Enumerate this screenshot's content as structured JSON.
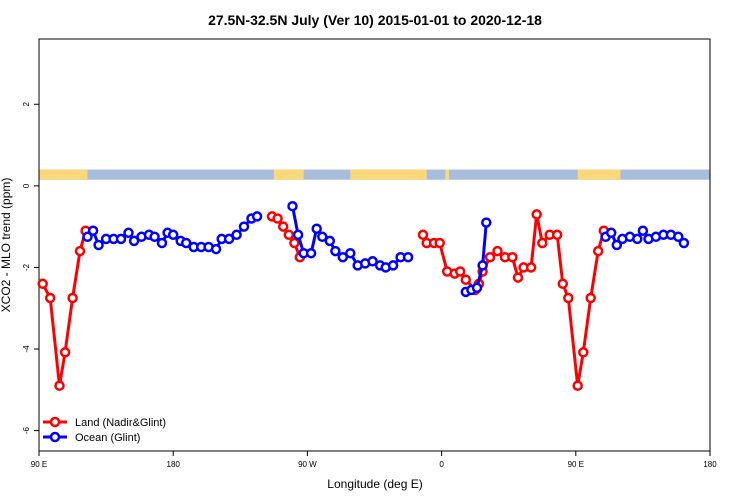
{
  "chart_data": {
    "type": "line",
    "title": "27.5N-32.5N July (Ver 10)   2015-01-01 to 2020-12-18",
    "xlabel": "Longitude (deg E)",
    "ylabel": "XCO2 - MLO trend (ppm)",
    "xlim": [
      -90,
      270
    ],
    "ylim": [
      -6.5,
      3.6
    ],
    "x_ticks": [
      {
        "value": -90,
        "label": "90 E"
      },
      {
        "value": -18,
        "label": "180"
      },
      {
        "value": 54,
        "label": "90 W"
      },
      {
        "value": 126,
        "label": "0"
      },
      {
        "value": 198,
        "label": "90 E"
      },
      {
        "value": 270,
        "label": "180"
      }
    ],
    "y_ticks": [
      {
        "value": -6,
        "label": "-6"
      },
      {
        "value": -4,
        "label": "-4"
      },
      {
        "value": -2,
        "label": "-2"
      },
      {
        "value": 0,
        "label": "0"
      },
      {
        "value": 2,
        "label": "2"
      }
    ],
    "land_ocean_strip": {
      "y_range": [
        0.15,
        0.4
      ],
      "land_color": "#f8d878",
      "ocean_color": "#a8bcdc",
      "land_segments": [
        [
          -90,
          -64
        ],
        [
          36,
          52
        ],
        [
          77,
          118
        ],
        [
          128,
          130
        ],
        [
          199,
          222
        ]
      ]
    },
    "legend": {
      "position": "bottom-left",
      "entries": [
        {
          "label": "Land (Nadir&Glint)",
          "color": "#ff0000"
        },
        {
          "label": "Ocean (Glint)",
          "color": "#0000ff"
        }
      ]
    },
    "series": [
      {
        "name": "Land (Nadir&Glint)",
        "color": "#ff0000",
        "segments": [
          [
            [
              -88,
              -2.4
            ],
            [
              -84,
              -2.75
            ],
            [
              -79,
              -4.9
            ],
            [
              -76,
              -4.08
            ],
            [
              -72,
              -2.75
            ],
            [
              -68,
              -1.6
            ],
            [
              -65,
              -1.1
            ]
          ],
          [
            [
              35,
              -0.75
            ],
            [
              38,
              -0.8
            ],
            [
              41,
              -1.0
            ],
            [
              44,
              -1.2
            ],
            [
              47,
              -1.4
            ],
            [
              50,
              -1.75
            ]
          ],
          [
            [
              116,
              -1.2
            ],
            [
              118,
              -1.4
            ],
            [
              122,
              -1.4
            ],
            [
              125,
              -1.4
            ],
            [
              129,
              -2.1
            ],
            [
              133,
              -2.15
            ],
            [
              136,
              -2.1
            ],
            [
              139,
              -2.3
            ],
            [
              144,
              -2.55
            ],
            [
              146,
              -2.4
            ],
            [
              148,
              -2.1
            ],
            [
              152,
              -1.75
            ],
            [
              156,
              -1.6
            ],
            [
              160,
              -1.75
            ],
            [
              164,
              -1.75
            ],
            [
              167,
              -2.25
            ],
            [
              170,
              -2.0
            ],
            [
              174,
              -2.0
            ],
            [
              177,
              -0.7
            ],
            [
              180,
              -1.4
            ],
            [
              184,
              -1.2
            ],
            [
              188,
              -1.2
            ],
            [
              191,
              -2.4
            ],
            [
              194,
              -2.75
            ],
            [
              199,
              -4.9
            ],
            [
              202,
              -4.08
            ],
            [
              206,
              -2.75
            ],
            [
              210,
              -1.6
            ],
            [
              213,
              -1.1
            ]
          ]
        ]
      },
      {
        "name": "Ocean (Glint)",
        "color": "#0000ff",
        "segments": [
          [
            [
              -64,
              -1.25
            ],
            [
              -61,
              -1.1
            ],
            [
              -58,
              -1.45
            ],
            [
              -54,
              -1.3
            ],
            [
              -50,
              -1.3
            ],
            [
              -46,
              -1.3
            ],
            [
              -42,
              -1.15
            ],
            [
              -39,
              -1.35
            ],
            [
              -35,
              -1.25
            ],
            [
              -31,
              -1.2
            ],
            [
              -28,
              -1.25
            ],
            [
              -24,
              -1.4
            ],
            [
              -21,
              -1.15
            ],
            [
              -18,
              -1.2
            ],
            [
              -14,
              -1.35
            ],
            [
              -11,
              -1.4
            ],
            [
              -7,
              -1.5
            ],
            [
              -3,
              -1.5
            ],
            [
              1,
              -1.5
            ],
            [
              5,
              -1.55
            ],
            [
              8,
              -1.3
            ],
            [
              12,
              -1.3
            ],
            [
              16,
              -1.2
            ],
            [
              20,
              -1.0
            ],
            [
              24,
              -0.8
            ],
            [
              27,
              -0.75
            ]
          ],
          [
            [
              46,
              -0.5
            ],
            [
              49,
              -1.2
            ],
            [
              52,
              -1.65
            ],
            [
              56,
              -1.65
            ],
            [
              59,
              -1.05
            ],
            [
              62,
              -1.25
            ],
            [
              66,
              -1.35
            ],
            [
              69,
              -1.6
            ],
            [
              73,
              -1.75
            ],
            [
              77,
              -1.65
            ],
            [
              81,
              -1.95
            ],
            [
              85,
              -1.9
            ],
            [
              89,
              -1.85
            ],
            [
              93,
              -1.95
            ],
            [
              96,
              -2.0
            ],
            [
              100,
              -1.95
            ],
            [
              104,
              -1.75
            ],
            [
              108,
              -1.75
            ]
          ],
          [
            [
              139,
              -2.6
            ],
            [
              142,
              -2.55
            ],
            [
              145,
              -2.5
            ],
            [
              148,
              -1.95
            ],
            [
              150,
              -0.9
            ]
          ],
          [
            [
              214,
              -1.25
            ],
            [
              217,
              -1.15
            ],
            [
              220,
              -1.45
            ],
            [
              223,
              -1.3
            ],
            [
              227,
              -1.25
            ],
            [
              231,
              -1.3
            ],
            [
              234,
              -1.1
            ],
            [
              237,
              -1.3
            ],
            [
              241,
              -1.25
            ],
            [
              245,
              -1.2
            ],
            [
              249,
              -1.2
            ],
            [
              253,
              -1.25
            ],
            [
              256,
              -1.4
            ]
          ]
        ]
      }
    ]
  }
}
